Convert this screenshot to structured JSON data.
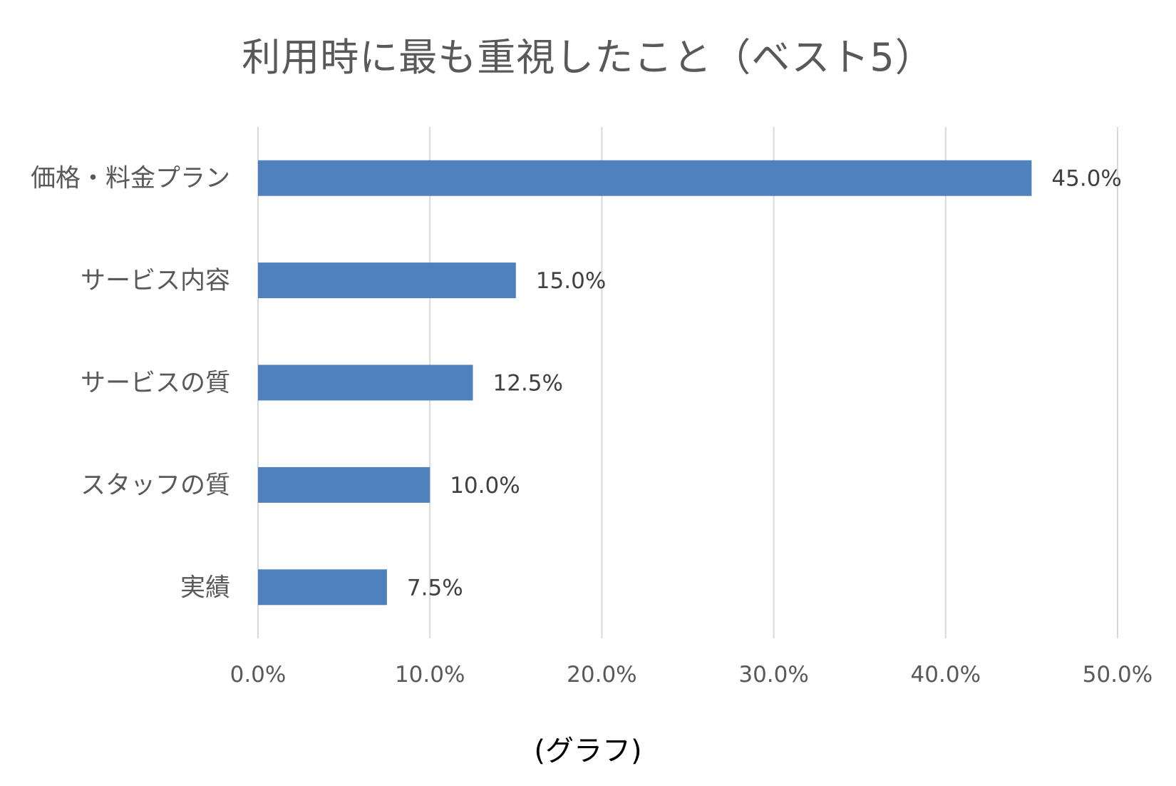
{
  "caption": "(グラフ)",
  "chart_data": {
    "type": "bar",
    "orientation": "horizontal",
    "title": "利用時に最も重視したこと（ベスト5）",
    "categories": [
      "価格・料金プラン",
      "サービス内容",
      "サービスの質",
      "スタッフの質",
      "実績"
    ],
    "values": [
      45.0,
      15.0,
      12.5,
      10.0,
      7.5
    ],
    "data_labels": [
      "45.0%",
      "15.0%",
      "12.5%",
      "10.0%",
      "7.5%"
    ],
    "xlim": [
      0,
      50
    ],
    "x_ticks": [
      0,
      10,
      20,
      30,
      40,
      50
    ],
    "x_tick_labels": [
      "0.0%",
      "10.0%",
      "20.0%",
      "30.0%",
      "40.0%",
      "50.0%"
    ],
    "xlabel": "",
    "ylabel": "",
    "grid": "vertical",
    "legend": "none",
    "bar_color": "#4f81bd",
    "grid_color": "#d9d9d9"
  }
}
